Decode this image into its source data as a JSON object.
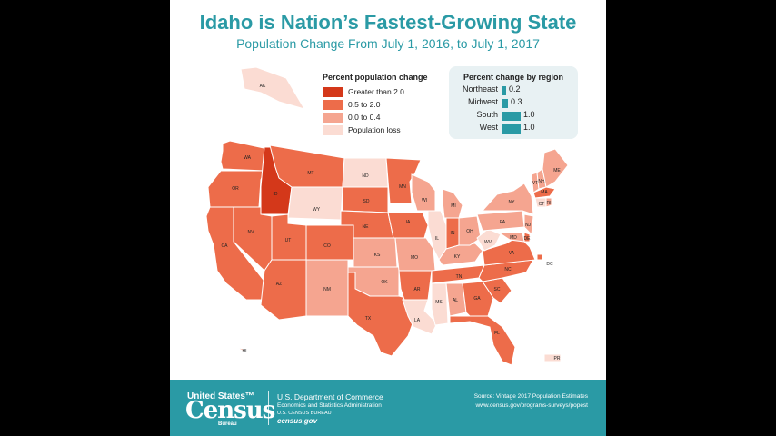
{
  "title": "Idaho is Nation’s Fastest-Growing State",
  "subtitle": "Population Change From July 1, 2016, to July 1, 2017",
  "legend": {
    "title": "Percent population change",
    "items": [
      {
        "label": "Greater than 2.0",
        "color": "#d4381a"
      },
      {
        "label": "0.5 to 2.0",
        "color": "#ed6c4a"
      },
      {
        "label": "0.0 to 0.4",
        "color": "#f5a590"
      },
      {
        "label": "Population loss",
        "color": "#fbdcd3"
      }
    ]
  },
  "region": {
    "title": "Percent change by region",
    "rows": [
      {
        "name": "Northeast",
        "value": "0.2",
        "num": 0.2
      },
      {
        "name": "Midwest",
        "value": "0.3",
        "num": 0.3
      },
      {
        "name": "South",
        "value": "1.0",
        "num": 1.0
      },
      {
        "name": "West",
        "value": "1.0",
        "num": 1.0
      }
    ],
    "bar_color": "#2a9aa5"
  },
  "states": [
    {
      "abbr": "AK",
      "cat": "loss"
    },
    {
      "abbr": "HI",
      "cat": "low"
    },
    {
      "abbr": "PR",
      "cat": "loss"
    },
    {
      "abbr": "WA",
      "cat": "mid"
    },
    {
      "abbr": "OR",
      "cat": "mid"
    },
    {
      "abbr": "CA",
      "cat": "mid"
    },
    {
      "abbr": "ID",
      "cat": "high"
    },
    {
      "abbr": "NV",
      "cat": "mid"
    },
    {
      "abbr": "MT",
      "cat": "mid"
    },
    {
      "abbr": "WY",
      "cat": "loss"
    },
    {
      "abbr": "UT",
      "cat": "mid"
    },
    {
      "abbr": "AZ",
      "cat": "mid"
    },
    {
      "abbr": "CO",
      "cat": "mid"
    },
    {
      "abbr": "NM",
      "cat": "low"
    },
    {
      "abbr": "ND",
      "cat": "loss"
    },
    {
      "abbr": "SD",
      "cat": "mid"
    },
    {
      "abbr": "NE",
      "cat": "mid"
    },
    {
      "abbr": "KS",
      "cat": "low"
    },
    {
      "abbr": "OK",
      "cat": "low"
    },
    {
      "abbr": "TX",
      "cat": "mid"
    },
    {
      "abbr": "MN",
      "cat": "mid"
    },
    {
      "abbr": "IA",
      "cat": "mid"
    },
    {
      "abbr": "MO",
      "cat": "low"
    },
    {
      "abbr": "AR",
      "cat": "mid"
    },
    {
      "abbr": "LA",
      "cat": "loss"
    },
    {
      "abbr": "WI",
      "cat": "low"
    },
    {
      "abbr": "IL",
      "cat": "loss"
    },
    {
      "abbr": "MS",
      "cat": "loss"
    },
    {
      "abbr": "MI",
      "cat": "low"
    },
    {
      "abbr": "IN",
      "cat": "mid"
    },
    {
      "abbr": "KY",
      "cat": "low"
    },
    {
      "abbr": "TN",
      "cat": "mid"
    },
    {
      "abbr": "AL",
      "cat": "low"
    },
    {
      "abbr": "OH",
      "cat": "low"
    },
    {
      "abbr": "GA",
      "cat": "mid"
    },
    {
      "abbr": "FL",
      "cat": "mid"
    },
    {
      "abbr": "SC",
      "cat": "mid"
    },
    {
      "abbr": "NC",
      "cat": "mid"
    },
    {
      "abbr": "VA",
      "cat": "mid"
    },
    {
      "abbr": "WV",
      "cat": "loss"
    },
    {
      "abbr": "PA",
      "cat": "low"
    },
    {
      "abbr": "NY",
      "cat": "low"
    },
    {
      "abbr": "VT",
      "cat": "low"
    },
    {
      "abbr": "NH",
      "cat": "low"
    },
    {
      "abbr": "ME",
      "cat": "low"
    },
    {
      "abbr": "MA",
      "cat": "mid"
    },
    {
      "abbr": "CT",
      "cat": "loss"
    },
    {
      "abbr": "RI",
      "cat": "low"
    },
    {
      "abbr": "NJ",
      "cat": "low"
    },
    {
      "abbr": "DE",
      "cat": "mid"
    },
    {
      "abbr": "MD",
      "cat": "low"
    },
    {
      "abbr": "DC",
      "cat": "mid"
    }
  ],
  "footer": {
    "logo_top": "United States™",
    "logo_main": "Census",
    "logo_sub": "Bureau",
    "dept": "U.S. Department of Commerce",
    "eco": "Economics and Statistics Administration",
    "bureau": "U.S. CENSUS BUREAU",
    "site": "census.gov",
    "source": "Source: Vintage 2017 Population Estimates",
    "url": "www.census.gov/programs-surveys/popest",
    "bg_color": "#2a9aa5"
  }
}
